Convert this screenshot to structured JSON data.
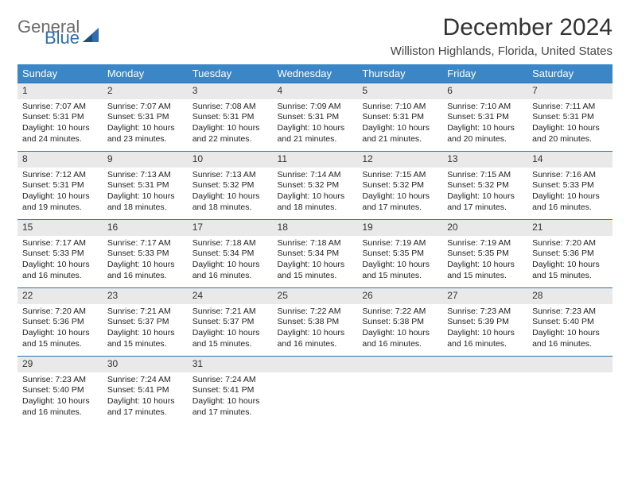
{
  "brand": {
    "part1": "General",
    "part2": "Blue"
  },
  "title": "December 2024",
  "location": "Williston Highlands, Florida, United States",
  "colors": {
    "header_bg": "#3b86c6",
    "accent_line": "#2f6fae",
    "daynum_bg": "#e9e9e9",
    "text": "#333333",
    "logo_gray": "#6b6b6b",
    "logo_blue": "#2f6fae",
    "background": "#ffffff"
  },
  "fonts": {
    "base_size_pt": 10.5,
    "title_size_pt": 30,
    "location_size_pt": 15,
    "header_size_pt": 13,
    "daynum_size_pt": 12
  },
  "day_headers": [
    "Sunday",
    "Monday",
    "Tuesday",
    "Wednesday",
    "Thursday",
    "Friday",
    "Saturday"
  ],
  "weeks": [
    [
      {
        "num": "1",
        "sunrise": "Sunrise: 7:07 AM",
        "sunset": "Sunset: 5:31 PM",
        "daylight": "Daylight: 10 hours and 24 minutes."
      },
      {
        "num": "2",
        "sunrise": "Sunrise: 7:07 AM",
        "sunset": "Sunset: 5:31 PM",
        "daylight": "Daylight: 10 hours and 23 minutes."
      },
      {
        "num": "3",
        "sunrise": "Sunrise: 7:08 AM",
        "sunset": "Sunset: 5:31 PM",
        "daylight": "Daylight: 10 hours and 22 minutes."
      },
      {
        "num": "4",
        "sunrise": "Sunrise: 7:09 AM",
        "sunset": "Sunset: 5:31 PM",
        "daylight": "Daylight: 10 hours and 21 minutes."
      },
      {
        "num": "5",
        "sunrise": "Sunrise: 7:10 AM",
        "sunset": "Sunset: 5:31 PM",
        "daylight": "Daylight: 10 hours and 21 minutes."
      },
      {
        "num": "6",
        "sunrise": "Sunrise: 7:10 AM",
        "sunset": "Sunset: 5:31 PM",
        "daylight": "Daylight: 10 hours and 20 minutes."
      },
      {
        "num": "7",
        "sunrise": "Sunrise: 7:11 AM",
        "sunset": "Sunset: 5:31 PM",
        "daylight": "Daylight: 10 hours and 20 minutes."
      }
    ],
    [
      {
        "num": "8",
        "sunrise": "Sunrise: 7:12 AM",
        "sunset": "Sunset: 5:31 PM",
        "daylight": "Daylight: 10 hours and 19 minutes."
      },
      {
        "num": "9",
        "sunrise": "Sunrise: 7:13 AM",
        "sunset": "Sunset: 5:31 PM",
        "daylight": "Daylight: 10 hours and 18 minutes."
      },
      {
        "num": "10",
        "sunrise": "Sunrise: 7:13 AM",
        "sunset": "Sunset: 5:32 PM",
        "daylight": "Daylight: 10 hours and 18 minutes."
      },
      {
        "num": "11",
        "sunrise": "Sunrise: 7:14 AM",
        "sunset": "Sunset: 5:32 PM",
        "daylight": "Daylight: 10 hours and 18 minutes."
      },
      {
        "num": "12",
        "sunrise": "Sunrise: 7:15 AM",
        "sunset": "Sunset: 5:32 PM",
        "daylight": "Daylight: 10 hours and 17 minutes."
      },
      {
        "num": "13",
        "sunrise": "Sunrise: 7:15 AM",
        "sunset": "Sunset: 5:32 PM",
        "daylight": "Daylight: 10 hours and 17 minutes."
      },
      {
        "num": "14",
        "sunrise": "Sunrise: 7:16 AM",
        "sunset": "Sunset: 5:33 PM",
        "daylight": "Daylight: 10 hours and 16 minutes."
      }
    ],
    [
      {
        "num": "15",
        "sunrise": "Sunrise: 7:17 AM",
        "sunset": "Sunset: 5:33 PM",
        "daylight": "Daylight: 10 hours and 16 minutes."
      },
      {
        "num": "16",
        "sunrise": "Sunrise: 7:17 AM",
        "sunset": "Sunset: 5:33 PM",
        "daylight": "Daylight: 10 hours and 16 minutes."
      },
      {
        "num": "17",
        "sunrise": "Sunrise: 7:18 AM",
        "sunset": "Sunset: 5:34 PM",
        "daylight": "Daylight: 10 hours and 16 minutes."
      },
      {
        "num": "18",
        "sunrise": "Sunrise: 7:18 AM",
        "sunset": "Sunset: 5:34 PM",
        "daylight": "Daylight: 10 hours and 15 minutes."
      },
      {
        "num": "19",
        "sunrise": "Sunrise: 7:19 AM",
        "sunset": "Sunset: 5:35 PM",
        "daylight": "Daylight: 10 hours and 15 minutes."
      },
      {
        "num": "20",
        "sunrise": "Sunrise: 7:19 AM",
        "sunset": "Sunset: 5:35 PM",
        "daylight": "Daylight: 10 hours and 15 minutes."
      },
      {
        "num": "21",
        "sunrise": "Sunrise: 7:20 AM",
        "sunset": "Sunset: 5:36 PM",
        "daylight": "Daylight: 10 hours and 15 minutes."
      }
    ],
    [
      {
        "num": "22",
        "sunrise": "Sunrise: 7:20 AM",
        "sunset": "Sunset: 5:36 PM",
        "daylight": "Daylight: 10 hours and 15 minutes."
      },
      {
        "num": "23",
        "sunrise": "Sunrise: 7:21 AM",
        "sunset": "Sunset: 5:37 PM",
        "daylight": "Daylight: 10 hours and 15 minutes."
      },
      {
        "num": "24",
        "sunrise": "Sunrise: 7:21 AM",
        "sunset": "Sunset: 5:37 PM",
        "daylight": "Daylight: 10 hours and 15 minutes."
      },
      {
        "num": "25",
        "sunrise": "Sunrise: 7:22 AM",
        "sunset": "Sunset: 5:38 PM",
        "daylight": "Daylight: 10 hours and 16 minutes."
      },
      {
        "num": "26",
        "sunrise": "Sunrise: 7:22 AM",
        "sunset": "Sunset: 5:38 PM",
        "daylight": "Daylight: 10 hours and 16 minutes."
      },
      {
        "num": "27",
        "sunrise": "Sunrise: 7:23 AM",
        "sunset": "Sunset: 5:39 PM",
        "daylight": "Daylight: 10 hours and 16 minutes."
      },
      {
        "num": "28",
        "sunrise": "Sunrise: 7:23 AM",
        "sunset": "Sunset: 5:40 PM",
        "daylight": "Daylight: 10 hours and 16 minutes."
      }
    ],
    [
      {
        "num": "29",
        "sunrise": "Sunrise: 7:23 AM",
        "sunset": "Sunset: 5:40 PM",
        "daylight": "Daylight: 10 hours and 16 minutes."
      },
      {
        "num": "30",
        "sunrise": "Sunrise: 7:24 AM",
        "sunset": "Sunset: 5:41 PM",
        "daylight": "Daylight: 10 hours and 17 minutes."
      },
      {
        "num": "31",
        "sunrise": "Sunrise: 7:24 AM",
        "sunset": "Sunset: 5:41 PM",
        "daylight": "Daylight: 10 hours and 17 minutes."
      },
      null,
      null,
      null,
      null
    ]
  ]
}
